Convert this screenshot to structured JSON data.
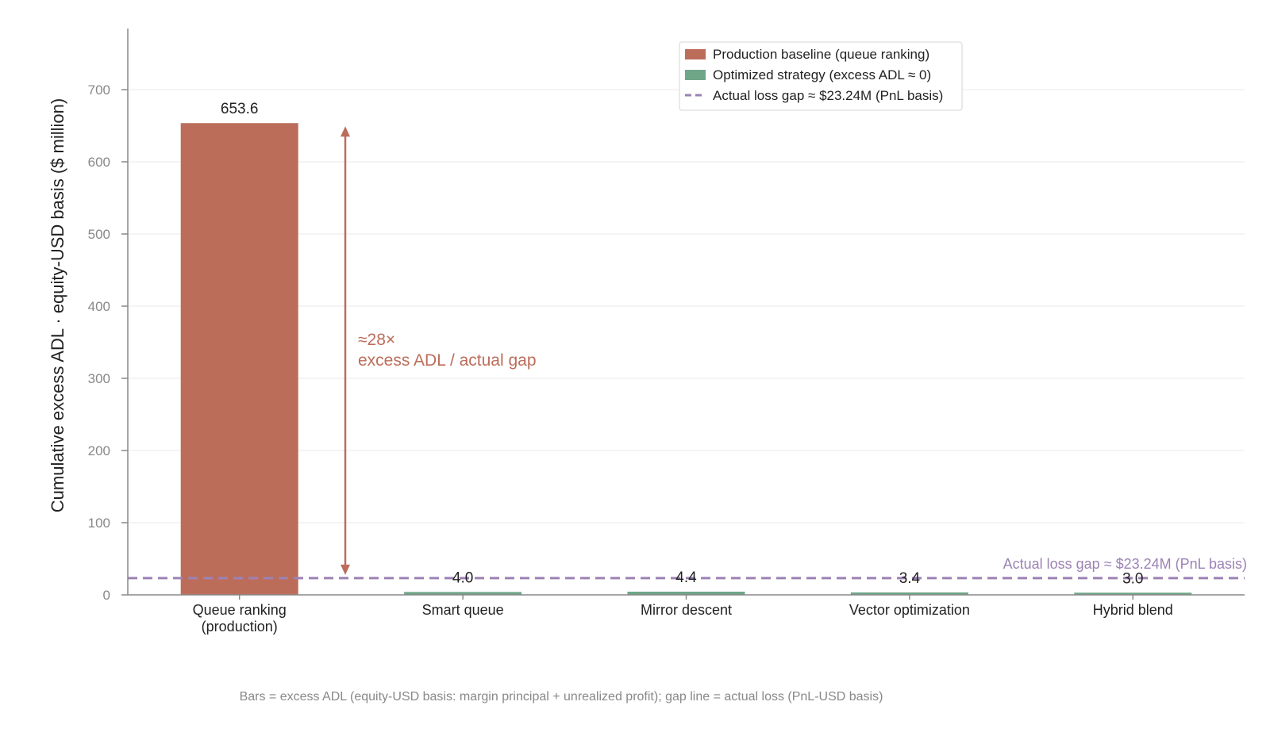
{
  "chart_data": {
    "type": "bar",
    "categories": [
      "Queue ranking\n(production)",
      "Smart queue",
      "Mirror descent",
      "Vector optimization",
      "Hybrid blend"
    ],
    "values": [
      653.6,
      4.0,
      4.4,
      3.4,
      3.0
    ],
    "value_labels": [
      "653.6",
      "4.0",
      "4.4",
      "3.4",
      "3.0"
    ],
    "bar_roles": [
      "baseline",
      "optimized",
      "optimized",
      "optimized",
      "optimized"
    ],
    "ylabel": "Cumulative excess ADL · equity-USD basis ($ million)",
    "xlabel": "",
    "ylim": [
      0,
      780
    ],
    "yticks": [
      0,
      100,
      200,
      300,
      400,
      500,
      600,
      700
    ],
    "grid": "horizontal",
    "legend": {
      "placement": "top-right",
      "entries": [
        {
          "label": "Production baseline (queue ranking)",
          "kind": "bar",
          "role": "baseline"
        },
        {
          "label": "Optimized strategy (excess ADL ≈ 0)",
          "kind": "bar",
          "role": "optimized"
        },
        {
          "label": "Actual loss gap ≈ $23.24M (PnL basis)",
          "kind": "dashed-line",
          "role": "gap"
        }
      ]
    },
    "reference_line": {
      "value": 23.24,
      "label": "Actual loss gap ≈ $23.24M (PnL basis)",
      "style": "dashed"
    },
    "annotation": {
      "from": 653.6,
      "to": 23.24,
      "line1": "≈28×",
      "line2": "excess ADL / actual gap"
    },
    "footnote": "Bars = excess ADL (equity-USD basis: margin principal + unrealized profit); gap line = actual loss (PnL-USD basis)",
    "colors": {
      "baseline": "#bc6d5a",
      "optimized": "#6fa688",
      "gap": "#9c82b5",
      "annotation": "#bc6d5a",
      "grid": "#e8e8e8",
      "axis": "#888888",
      "tick_text": "#888888",
      "text": "#222222",
      "footnote": "#888888"
    }
  }
}
